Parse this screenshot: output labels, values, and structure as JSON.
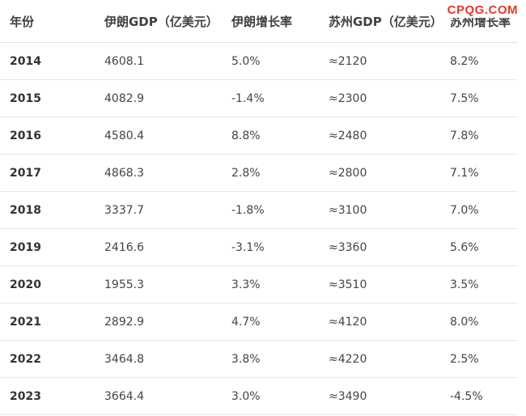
{
  "watermark": {
    "text": "CPQG.COM",
    "color": "#e03b2e"
  },
  "table": {
    "headers": [
      "年份",
      "伊朗GDP（亿美元）",
      "伊朗增长率",
      "苏州GDP（亿美元）",
      "苏州增长率"
    ],
    "rows": [
      [
        "2014",
        "4608.1",
        "5.0%",
        "≈2120",
        "8.2%"
      ],
      [
        "2015",
        "4082.9",
        "-1.4%",
        "≈2300",
        "7.5%"
      ],
      [
        "2016",
        "4580.4",
        "8.8%",
        "≈2480",
        "7.8%"
      ],
      [
        "2017",
        "4868.3",
        "2.8%",
        "≈2800",
        "7.1%"
      ],
      [
        "2018",
        "3337.7",
        "-1.8%",
        "≈3100",
        "7.0%"
      ],
      [
        "2019",
        "2416.6",
        "-3.1%",
        "≈3360",
        "5.6%"
      ],
      [
        "2020",
        "1955.3",
        "3.3%",
        "≈3510",
        "3.5%"
      ],
      [
        "2021",
        "2892.9",
        "4.7%",
        "≈4120",
        "8.0%"
      ],
      [
        "2022",
        "3464.8",
        "3.8%",
        "≈4220",
        "2.5%"
      ],
      [
        "2023",
        "3664.4",
        "3.0%",
        "≈3490",
        "-4.5%"
      ]
    ]
  }
}
